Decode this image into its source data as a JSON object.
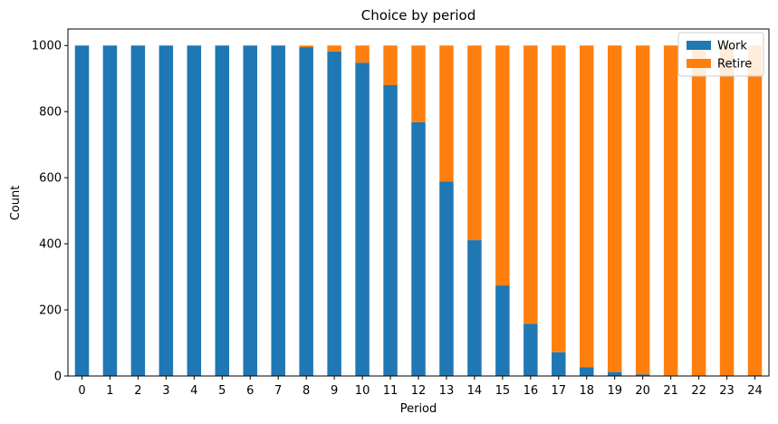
{
  "chart_data": {
    "type": "bar",
    "stacked": true,
    "title": "Choice by period",
    "xlabel": "Period",
    "ylabel": "Count",
    "ylim": [
      0,
      1050
    ],
    "yticks": [
      0,
      200,
      400,
      600,
      800,
      1000
    ],
    "categories": [
      "0",
      "1",
      "2",
      "3",
      "4",
      "5",
      "6",
      "7",
      "8",
      "9",
      "10",
      "11",
      "12",
      "13",
      "14",
      "15",
      "16",
      "17",
      "18",
      "19",
      "20",
      "21",
      "22",
      "23",
      "24"
    ],
    "series": [
      {
        "name": "Work",
        "color": "#1f77b4",
        "values": [
          1000,
          1000,
          1000,
          1000,
          1000,
          1000,
          1000,
          1000,
          995,
          982,
          948,
          880,
          768,
          588,
          411,
          274,
          158,
          72,
          26,
          12,
          5,
          2,
          2,
          0,
          0
        ]
      },
      {
        "name": "Retire",
        "color": "#ff7f0e",
        "values": [
          0,
          0,
          0,
          0,
          0,
          0,
          0,
          0,
          5,
          18,
          52,
          120,
          232,
          412,
          589,
          726,
          842,
          928,
          974,
          988,
          995,
          998,
          998,
          1000,
          1000
        ]
      }
    ],
    "grid": false,
    "legend_position": "top-right"
  }
}
